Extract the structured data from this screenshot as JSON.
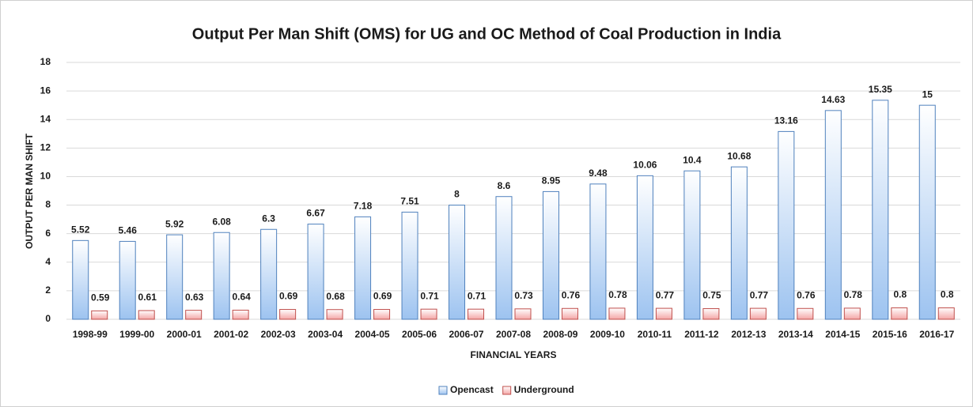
{
  "chart_data": {
    "type": "bar",
    "title": "Output Per Man Shift (OMS) for UG and OC Method of Coal Production  in India",
    "x_label": "FINANCIAL YEARS",
    "y_label": "OUTPUT PER MAN  SHIFT",
    "categories": [
      "1998-99",
      "1999-00",
      "2000-01",
      "2001-02",
      "2002-03",
      "2003-04",
      "2004-05",
      "2005-06",
      "2006-07",
      "2007-08",
      "2008-09",
      "2009-10",
      "2010-11",
      "2011-12",
      "2012-13",
      "2013-14",
      "2014-15",
      "2015-16",
      "2016-17"
    ],
    "series": [
      {
        "name": "Opencast",
        "color": "#4f81bd",
        "fill": "#9dc3f0",
        "values": [
          5.52,
          5.46,
          5.92,
          6.08,
          6.3,
          6.67,
          7.18,
          7.51,
          8,
          8.6,
          8.95,
          9.48,
          10.06,
          10.4,
          10.68,
          13.16,
          14.63,
          15.35,
          15
        ]
      },
      {
        "name": "Underground",
        "color": "#c0504d",
        "fill": "#f4a6a6",
        "values": [
          0.59,
          0.61,
          0.63,
          0.64,
          0.69,
          0.68,
          0.69,
          0.71,
          0.71,
          0.73,
          0.76,
          0.78,
          0.77,
          0.75,
          0.77,
          0.76,
          0.78,
          0.8,
          0.8
        ]
      }
    ],
    "ylim": [
      0,
      18
    ],
    "yticks": [
      0,
      2,
      4,
      6,
      8,
      10,
      12,
      14,
      16,
      18
    ],
    "grid": true,
    "legend": "bottom"
  }
}
